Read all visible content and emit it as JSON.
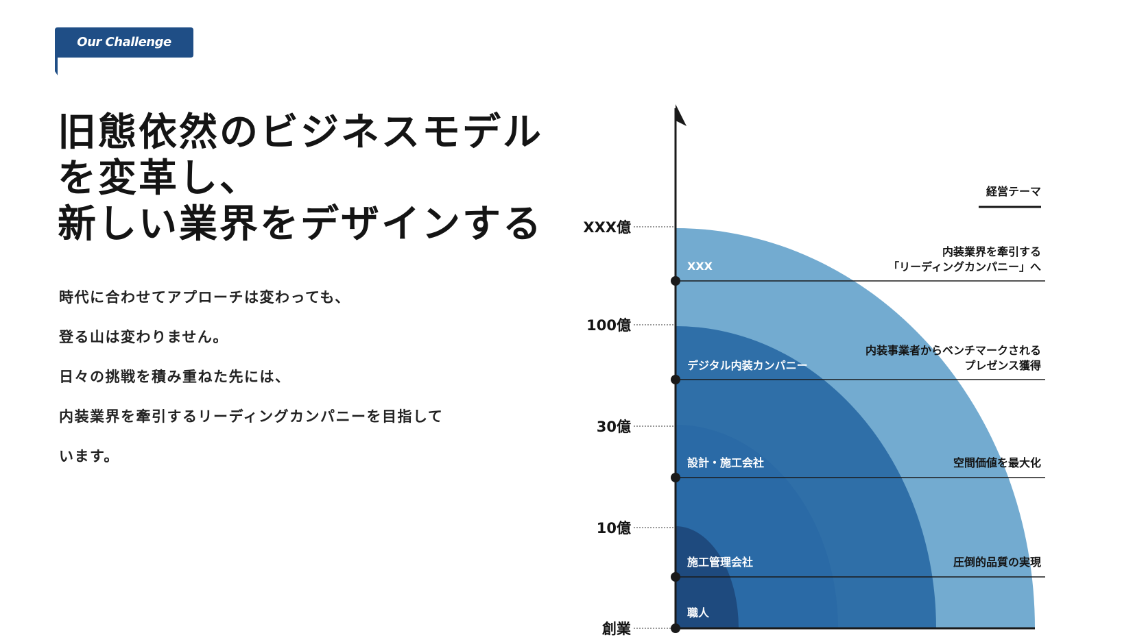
{
  "badge": {
    "label": "Our Challenge",
    "color": "#1f4e86"
  },
  "headline": {
    "lines": [
      "旧態依然のビジネスモデル",
      "を変革し、",
      "新しい業界をデザインする"
    ]
  },
  "body": {
    "lines": [
      "時代に合わせてアプローチは変わっても、",
      "登る山は変わりません。",
      "日々の挑戦を積み重ねた先には、",
      "内装業界を牽引するリーディングカンパニーを目指して",
      "います。"
    ]
  },
  "diagram": {
    "theme_header": "経営テーマ",
    "revenue_levels": [
      {
        "label": "創業"
      },
      {
        "label": "10億"
      },
      {
        "label": "30億"
      },
      {
        "label": "100億"
      },
      {
        "label": "XXX億"
      }
    ],
    "stages": [
      {
        "company_type": "職人",
        "theme_lines": [],
        "color": "#1a3a5c"
      },
      {
        "company_type": "施工管理会社",
        "theme_lines": [
          "圧倒的品質の実現"
        ],
        "color": "#1e4a7e"
      },
      {
        "company_type": "設計・施工会社",
        "theme_lines": [
          "空間価値を最大化"
        ],
        "color": "#2a6aa6"
      },
      {
        "company_type": "デジタル内装カンパニー",
        "theme_lines": [
          "内装事業者からベンチマークされる",
          "プレゼンス獲得"
        ],
        "color": "#2f6fa8"
      },
      {
        "company_type": "XXX",
        "theme_lines": [
          "内装業界を牽引する",
          "「リーディングカンパニー」へ"
        ],
        "color": "#73abd0"
      }
    ]
  }
}
